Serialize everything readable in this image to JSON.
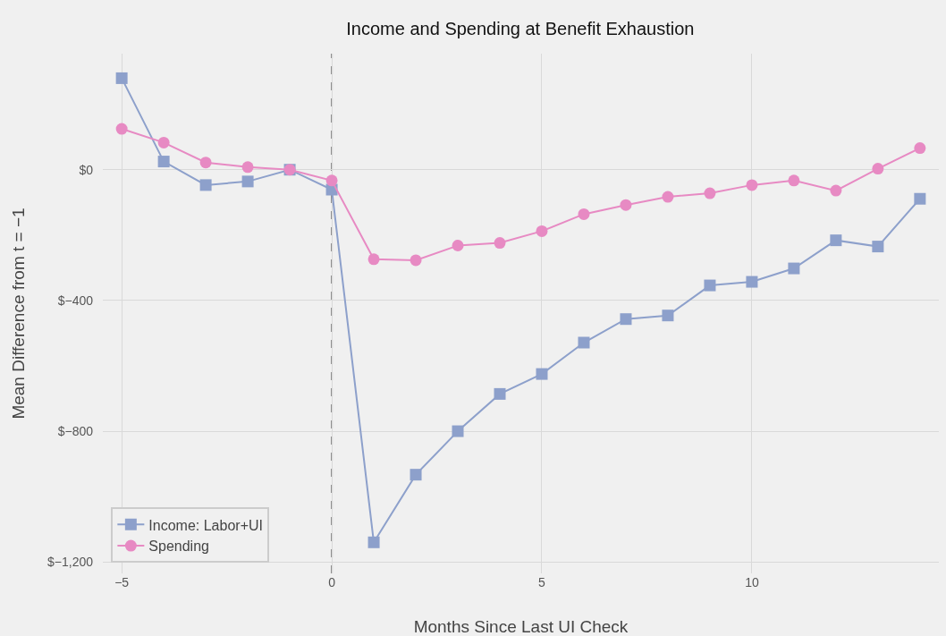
{
  "chart_data": {
    "type": "line",
    "title": "Income and Spending at Benefit Exhaustion",
    "xlabel": "Months Since Last UI Check",
    "ylabel": "Mean Difference from t = −1",
    "x": [
      -5,
      -4,
      -3,
      -2,
      -1,
      0,
      1,
      2,
      3,
      4,
      5,
      6,
      7,
      8,
      9,
      10,
      11,
      12,
      13,
      14
    ],
    "series": [
      {
        "name": "Income: Labor+UI",
        "color": "#8da0cb",
        "marker": "square",
        "values": [
          280,
          25,
          -47,
          -36,
          0,
          -61,
          -1140,
          -933,
          -800,
          -686,
          -625,
          -529,
          -457,
          -446,
          -354,
          -343,
          -302,
          -216,
          -235,
          -89
        ]
      },
      {
        "name": "Spending",
        "color": "#e78ac3",
        "marker": "circle",
        "values": [
          125,
          83,
          22,
          8,
          0,
          -33,
          -274,
          -277,
          -232,
          -224,
          -188,
          -136,
          -108,
          -83,
          -72,
          -47,
          -33,
          -64,
          3,
          66
        ]
      }
    ],
    "xlim": [
      -5.45,
      14.45
    ],
    "ylim": [
      -1235,
      355
    ],
    "xticks": [
      {
        "value": -5,
        "label": "−5"
      },
      0,
      5,
      10
    ],
    "yticks": [
      {
        "value": -1200,
        "label": "$−1,200"
      },
      {
        "value": -800,
        "label": "$−800"
      },
      {
        "value": -400,
        "label": "$−400"
      },
      {
        "value": 0,
        "label": "$0"
      }
    ],
    "ref_lines": [
      {
        "axis": "x",
        "value": 0,
        "label": null,
        "color": "#888888",
        "line_style": "dashed"
      }
    ],
    "grid": true,
    "legend": "bottom left",
    "line_style": "solid"
  }
}
